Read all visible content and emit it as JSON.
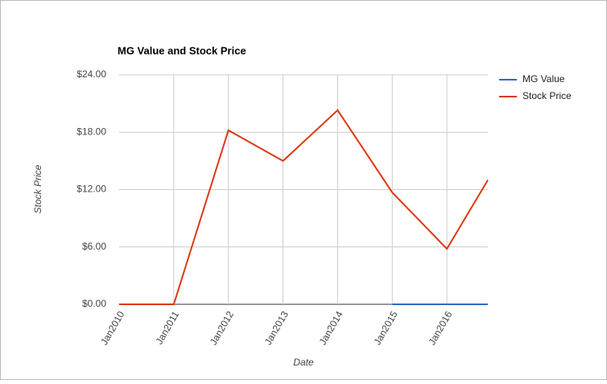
{
  "chart_data": {
    "type": "line",
    "title": "MG Value and Stock Price",
    "x_label": "Date",
    "y_label": "Stock Price",
    "x": [
      2010,
      2011,
      2012,
      2013,
      2014,
      2015,
      2016,
      2016.75
    ],
    "xlim": [
      2010,
      2016.75
    ],
    "xticks": [
      {
        "value": 2010,
        "label": "Jan2010"
      },
      {
        "value": 2011,
        "label": "Jan2011"
      },
      {
        "value": 2012,
        "label": "Jan2012"
      },
      {
        "value": 2013,
        "label": "Jan2013"
      },
      {
        "value": 2014,
        "label": "Jan2014"
      },
      {
        "value": 2015,
        "label": "Jan2015"
      },
      {
        "value": 2016,
        "label": "Jan2016"
      }
    ],
    "ylim": [
      0,
      24
    ],
    "yticks": [
      {
        "value": 0,
        "label": "$0.00"
      },
      {
        "value": 6,
        "label": "$6.00"
      },
      {
        "value": 12,
        "label": "$12.00"
      },
      {
        "value": 18,
        "label": "$18.00"
      },
      {
        "value": 24,
        "label": "$24.00"
      }
    ],
    "grid": true,
    "legend": "right",
    "series": [
      {
        "name": "MG Value",
        "color": "#3366cc",
        "values": [
          null,
          null,
          null,
          null,
          null,
          0,
          0,
          0
        ]
      },
      {
        "name": "Stock Price",
        "color": "#dc3912",
        "values": [
          0,
          0,
          18.2,
          15,
          20.3,
          11.7,
          5.8,
          13
        ]
      }
    ]
  }
}
